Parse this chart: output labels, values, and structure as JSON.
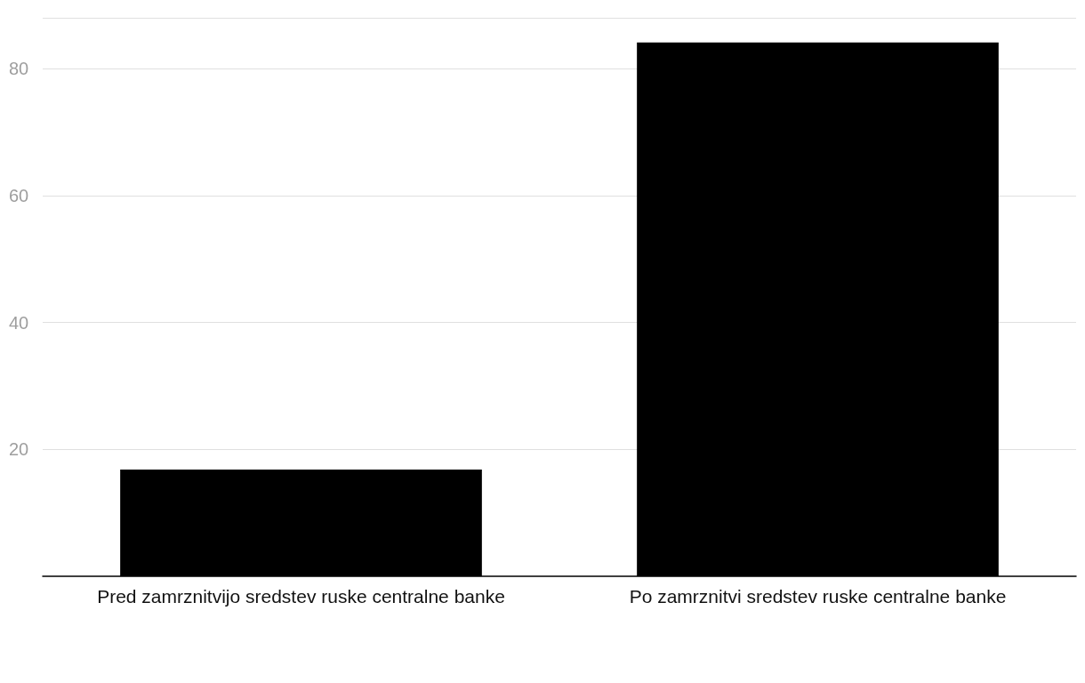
{
  "chart_data": {
    "type": "bar",
    "categories": [
      "Pred zamrznitvijo sredstev ruske centralne banke",
      "Po zamrznitvi sredstev ruske centralne banke"
    ],
    "values": [
      16.8,
      84.1
    ],
    "color": "#000000",
    "ylim": [
      0,
      88
    ],
    "yticks": [
      20,
      40,
      60,
      80
    ],
    "grid": "y"
  }
}
